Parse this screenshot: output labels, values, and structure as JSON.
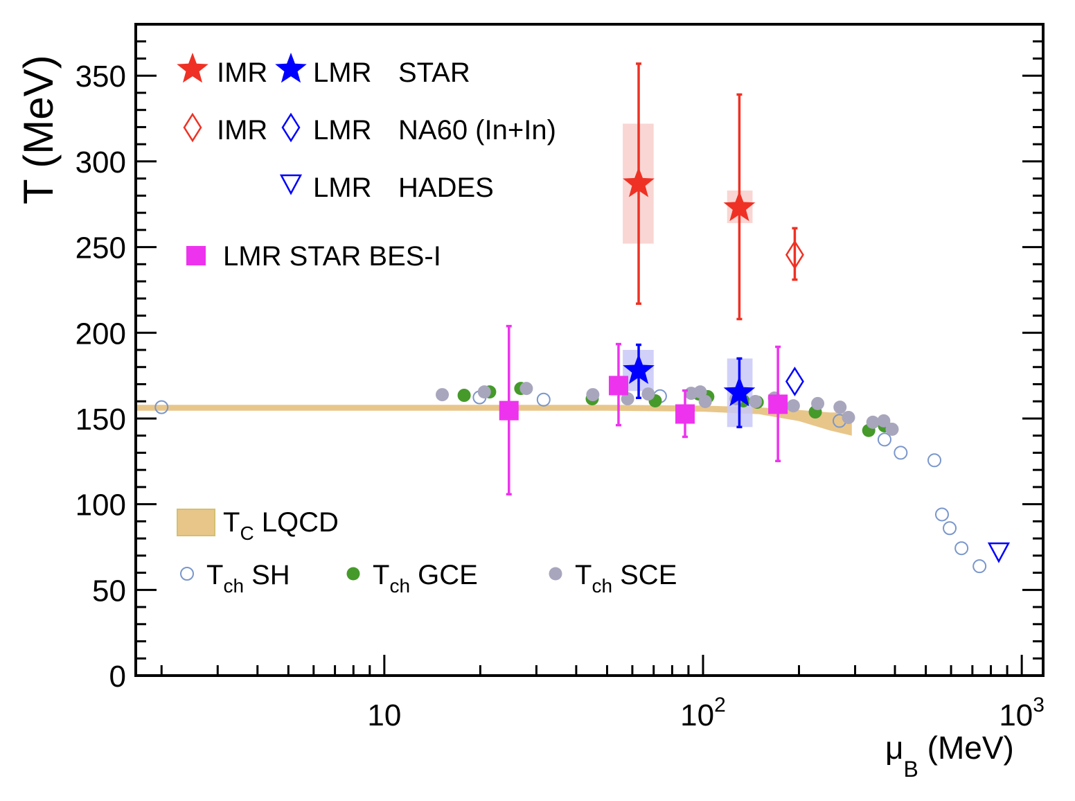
{
  "chart_data": {
    "type": "scatter",
    "title": "",
    "xlabel": {
      "main": "μ",
      "sub": "B",
      "rest": " (MeV)"
    },
    "ylabel": "T (MeV)",
    "xscale": "log",
    "xlim": [
      1.66,
      1167
    ],
    "ylim": [
      0,
      380
    ],
    "x_ticks": [
      {
        "value": 10,
        "base": "10",
        "exp": ""
      },
      {
        "value": 100,
        "base": "10",
        "exp": "2"
      },
      {
        "value": 1000,
        "base": "10",
        "exp": "3"
      }
    ],
    "y_ticks": [
      0,
      50,
      100,
      150,
      200,
      250,
      300,
      350
    ],
    "grid": false,
    "colors": {
      "star_imr": "#ee3124",
      "lmr": "#0000ff",
      "bes": "#ee33ee",
      "band": "#e8c68a",
      "sh": "#7a96cc",
      "gce": "#459a2a",
      "sce": "#a8a6bd",
      "sys_red": "#f8cfcb",
      "sys_blue": "#c8c8f8"
    },
    "legend": {
      "row1": {
        "a": "IMR",
        "b": "LMR",
        "c": "STAR"
      },
      "row2": {
        "a": "IMR",
        "b": "LMR",
        "c": "NA60 (In+In)"
      },
      "row3": {
        "b": "LMR",
        "c": "HADES"
      },
      "bes": "LMR STAR BES-I",
      "lqcd": {
        "main": "T",
        "sub": "C",
        "rest": " LQCD"
      },
      "sh": {
        "main": "T",
        "sub": "ch",
        "rest": " SH"
      },
      "gce": {
        "main": "T",
        "sub": "ch",
        "rest": " GCE"
      },
      "sce": {
        "main": "T",
        "sub": "ch",
        "rest": " SCE"
      }
    },
    "series": [
      {
        "name": "IMR STAR",
        "marker": "star",
        "color": "#ee3124",
        "sys_color": "#f8cfcb",
        "points": [
          {
            "x": 62.8,
            "y": 287,
            "ylo": 217,
            "yhi": 357,
            "syslo": 252,
            "syshi": 322,
            "sxlo": 56,
            "sxhi": 70
          },
          {
            "x": 130,
            "y": 273,
            "ylo": 208,
            "yhi": 339,
            "syslo": 264,
            "syshi": 283,
            "sxlo": 119,
            "sxhi": 143
          }
        ]
      },
      {
        "name": "LMR STAR",
        "marker": "star",
        "color": "#0000ff",
        "sys_color": "#c8c8f8",
        "points": [
          {
            "x": 62.8,
            "y": 178,
            "ylo": 162,
            "yhi": 193,
            "syslo": 166,
            "syshi": 190,
            "sxlo": 56,
            "sxhi": 70
          },
          {
            "x": 130,
            "y": 165,
            "ylo": 145,
            "yhi": 185,
            "syslo": 145,
            "syshi": 185,
            "sxlo": 119,
            "sxhi": 143
          }
        ]
      },
      {
        "name": "IMR NA60 (In+In)",
        "marker": "diamond-open",
        "color": "#ee3124",
        "points": [
          {
            "x": 194,
            "y": 245.5,
            "ylo": 231,
            "yhi": 261
          }
        ]
      },
      {
        "name": "LMR NA60 (In+In)",
        "marker": "diamond-open",
        "color": "#0000ff",
        "points": [
          {
            "x": 194,
            "y": 171.6
          }
        ]
      },
      {
        "name": "LMR HADES",
        "marker": "triangle-down-open",
        "color": "#0000ff",
        "points": [
          {
            "x": 847,
            "y": 71.9
          }
        ]
      },
      {
        "name": "LMR STAR BES-I",
        "marker": "square",
        "color": "#ee33ee",
        "points": [
          {
            "x": 24.6,
            "y": 154.6,
            "ylo": 105.8,
            "yhi": 203.9
          },
          {
            "x": 54.3,
            "y": 169.2,
            "ylo": 146.1,
            "yhi": 193.4
          },
          {
            "x": 87.8,
            "y": 152.6,
            "ylo": 139.3,
            "yhi": 166.3
          },
          {
            "x": 171.8,
            "y": 158.3,
            "ylo": 125.2,
            "yhi": 191.8
          }
        ]
      },
      {
        "name": "Tch SH",
        "marker": "circle-open",
        "color": "#7a96cc",
        "points": [
          {
            "x": 2.0,
            "y": 156.6
          },
          {
            "x": 19.9,
            "y": 162.3
          },
          {
            "x": 31.6,
            "y": 161
          },
          {
            "x": 73.3,
            "y": 163
          },
          {
            "x": 268,
            "y": 148.6
          },
          {
            "x": 371,
            "y": 137.7
          },
          {
            "x": 417,
            "y": 130
          },
          {
            "x": 532,
            "y": 125.6
          },
          {
            "x": 562,
            "y": 94
          },
          {
            "x": 594,
            "y": 86
          },
          {
            "x": 647,
            "y": 74.3
          },
          {
            "x": 737,
            "y": 63.8
          }
        ]
      },
      {
        "name": "Tch GCE",
        "marker": "circle",
        "color": "#459a2a",
        "points": [
          {
            "x": 17.8,
            "y": 163.5
          },
          {
            "x": 21.4,
            "y": 165.5
          },
          {
            "x": 26.8,
            "y": 167.5
          },
          {
            "x": 44.9,
            "y": 161.5
          },
          {
            "x": 70.8,
            "y": 160.3
          },
          {
            "x": 97,
            "y": 164.3
          },
          {
            "x": 103.5,
            "y": 162.7
          },
          {
            "x": 133.7,
            "y": 160.3
          },
          {
            "x": 147.9,
            "y": 159.5
          },
          {
            "x": 225,
            "y": 153.8
          },
          {
            "x": 331,
            "y": 143
          },
          {
            "x": 371,
            "y": 145.7
          }
        ]
      },
      {
        "name": "Tch SCE",
        "marker": "circle",
        "color": "#a8a6bd",
        "points": [
          {
            "x": 15.2,
            "y": 163.9
          },
          {
            "x": 20.6,
            "y": 165.5
          },
          {
            "x": 27.9,
            "y": 167.5
          },
          {
            "x": 45.1,
            "y": 163.9
          },
          {
            "x": 58,
            "y": 161.5
          },
          {
            "x": 67.3,
            "y": 164.3
          },
          {
            "x": 91.8,
            "y": 164.7
          },
          {
            "x": 98,
            "y": 165.5
          },
          {
            "x": 101.6,
            "y": 159.9
          },
          {
            "x": 127,
            "y": 161.5
          },
          {
            "x": 146,
            "y": 159.9
          },
          {
            "x": 167.5,
            "y": 161.9
          },
          {
            "x": 192,
            "y": 157.4
          },
          {
            "x": 229,
            "y": 158.7
          },
          {
            "x": 269,
            "y": 156.6
          },
          {
            "x": 286,
            "y": 150.6
          },
          {
            "x": 341,
            "y": 147.8
          },
          {
            "x": 369,
            "y": 148.6
          },
          {
            "x": 392,
            "y": 143.7
          }
        ]
      }
    ],
    "band": {
      "name": "Tc LQCD",
      "color": "#e8c68a",
      "points": [
        {
          "x": 1.66,
          "lo": 154.5,
          "hi": 158
        },
        {
          "x": 50,
          "lo": 154.5,
          "hi": 158
        },
        {
          "x": 100,
          "lo": 154,
          "hi": 157.5
        },
        {
          "x": 150,
          "lo": 152.5,
          "hi": 156.5
        },
        {
          "x": 200,
          "lo": 148.5,
          "hi": 155
        },
        {
          "x": 250,
          "lo": 143,
          "hi": 153.5
        },
        {
          "x": 293,
          "lo": 140,
          "hi": 153.5
        }
      ]
    }
  }
}
